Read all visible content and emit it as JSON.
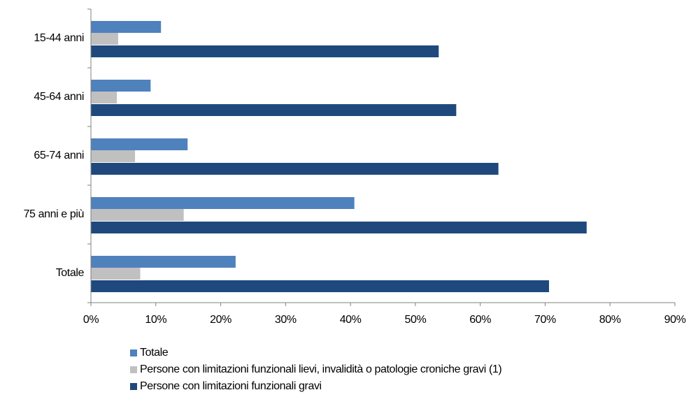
{
  "chart_data": {
    "type": "bar",
    "orientation": "horizontal",
    "categories": [
      "15-44 anni",
      "45-64 anni",
      "65-74 anni",
      "75 anni e più",
      "Totale"
    ],
    "series": [
      {
        "name": "Totale",
        "color": "#4f81bd",
        "values": [
          10.8,
          9.2,
          14.9,
          40.6,
          22.3
        ]
      },
      {
        "name": "Persone con limitazioni funzionali lievi, invalidità o patologie croniche gravi (1)",
        "color": "#c0c0c0",
        "values": [
          4.2,
          4.0,
          6.8,
          14.3,
          7.6
        ]
      },
      {
        "name": "Persone con limitazioni funzionali gravi",
        "color": "#1f497d",
        "values": [
          53.6,
          56.3,
          62.8,
          76.4,
          70.6
        ]
      }
    ],
    "xlim": [
      0,
      90
    ],
    "xticks": [
      "0%",
      "10%",
      "20%",
      "30%",
      "40%",
      "50%",
      "60%",
      "70%",
      "80%",
      "90%"
    ],
    "grid": false,
    "legend_position": "bottom"
  }
}
